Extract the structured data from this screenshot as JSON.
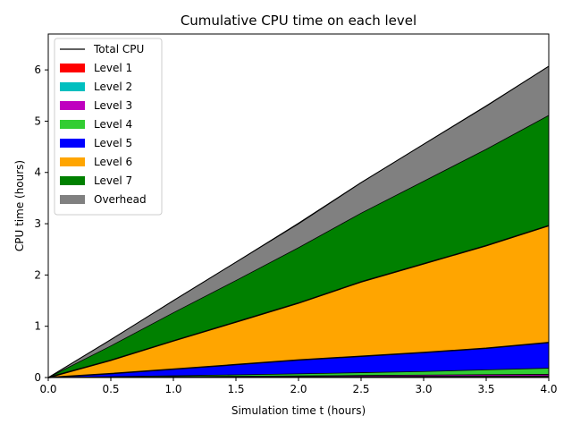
{
  "chart_data": {
    "type": "area",
    "title": "Cumulative CPU time on each level",
    "xlabel": "Simulation time t (hours)",
    "ylabel": "CPU time (hours)",
    "xlim": [
      0.0,
      4.0
    ],
    "ylim": [
      0.0,
      6.7
    ],
    "xticks": [
      0.0,
      0.5,
      1.0,
      1.5,
      2.0,
      2.5,
      3.0,
      3.5,
      4.0
    ],
    "xtick_labels": [
      "0.0",
      "0.5",
      "1.0",
      "1.5",
      "2.0",
      "2.5",
      "3.0",
      "3.5",
      "4.0"
    ],
    "yticks": [
      0,
      1,
      2,
      3,
      4,
      5,
      6
    ],
    "ytick_labels": [
      "0",
      "1",
      "2",
      "3",
      "4",
      "5",
      "6"
    ],
    "grid": false,
    "legend_position": "upper-left",
    "x": [
      0.0,
      0.5,
      1.0,
      1.5,
      2.0,
      2.5,
      3.0,
      3.5,
      4.0
    ],
    "series": [
      {
        "name": "Level 1",
        "color": "#ff0000",
        "values": [
          0,
          0.002,
          0.004,
          0.006,
          0.008,
          0.01,
          0.012,
          0.014,
          0.016
        ]
      },
      {
        "name": "Level 2",
        "color": "#00bfbf",
        "values": [
          0,
          0.002,
          0.004,
          0.006,
          0.008,
          0.01,
          0.012,
          0.014,
          0.016
        ]
      },
      {
        "name": "Level 3",
        "color": "#bf00bf",
        "values": [
          0,
          0.004,
          0.008,
          0.012,
          0.016,
          0.02,
          0.024,
          0.028,
          0.03
        ]
      },
      {
        "name": "Level 4",
        "color": "#32cd32",
        "values": [
          0,
          0.008,
          0.018,
          0.028,
          0.04,
          0.055,
          0.07,
          0.095,
          0.12
        ]
      },
      {
        "name": "Level 5",
        "color": "#0000ff",
        "values": [
          0,
          0.06,
          0.13,
          0.2,
          0.27,
          0.32,
          0.37,
          0.42,
          0.5
        ]
      },
      {
        "name": "Level 6",
        "color": "#ffa500",
        "values": [
          0,
          0.26,
          0.55,
          0.83,
          1.11,
          1.45,
          1.73,
          2.0,
          2.28
        ]
      },
      {
        "name": "Level 7",
        "color": "#008000",
        "values": [
          0,
          0.28,
          0.55,
          0.81,
          1.08,
          1.34,
          1.61,
          1.88,
          2.15
        ]
      },
      {
        "name": "Overhead",
        "color": "#808080",
        "values": [
          0,
          0.12,
          0.24,
          0.36,
          0.48,
          0.6,
          0.72,
          0.84,
          0.96
        ]
      }
    ],
    "total": {
      "name": "Total CPU",
      "color": "#000000",
      "values": [
        0,
        0.74,
        1.5,
        2.25,
        3.0,
        3.8,
        4.55,
        5.3,
        6.07
      ]
    }
  }
}
